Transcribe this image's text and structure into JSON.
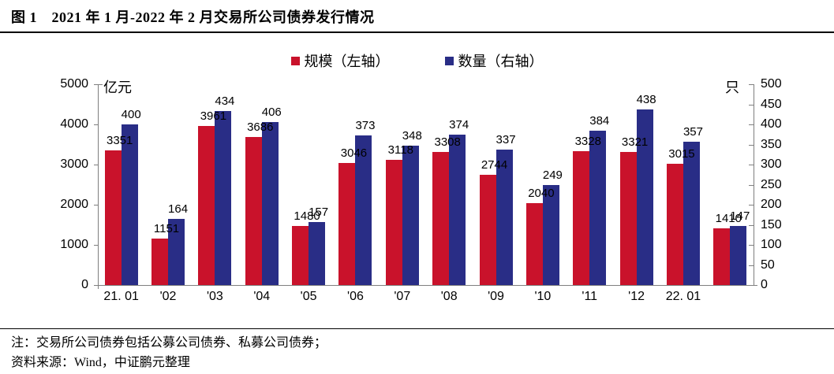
{
  "title": "图 1　2021 年 1 月-2022 年 2 月交易所公司债券发行情况",
  "legend": {
    "series_scale": "规模（左轴）",
    "series_count": "数量（右轴）"
  },
  "notes": {
    "note": "注：交易所公司债券包括公募公司债券、私募公司债券；",
    "source": "资料来源：Wind，中证鹏元整理"
  },
  "colors": {
    "scale_red": "#c9122b",
    "count_blue": "#292d86",
    "axis_gray": "#7f7f7f"
  },
  "chart_data": {
    "type": "bar",
    "title": "2021年1月-2022年2月交易所公司债券发行情况",
    "legend_position": "top",
    "grid": false,
    "categories": [
      "21. 01",
      "'02",
      "'03",
      "'04",
      "'05",
      "'06",
      "'07",
      "'08",
      "'09",
      "'10",
      "'11",
      "'12",
      "22. 01",
      ""
    ],
    "series": [
      {
        "name": "规模（左轴）",
        "axis": "left",
        "color": "#c9122b",
        "values": [
          3351,
          1151,
          3961,
          3686,
          1480,
          3046,
          3118,
          3308,
          2744,
          2040,
          3328,
          3321,
          3015,
          1410
        ]
      },
      {
        "name": "数量（右轴）",
        "axis": "right",
        "color": "#292d86",
        "values": [
          400,
          164,
          434,
          406,
          157,
          373,
          348,
          374,
          337,
          249,
          384,
          438,
          357,
          147
        ]
      }
    ],
    "left_axis": {
      "label": "亿元",
      "min": 0,
      "max": 5000,
      "step": 1000
    },
    "right_axis": {
      "label": "只",
      "min": 0,
      "max": 500,
      "step": 50
    }
  }
}
